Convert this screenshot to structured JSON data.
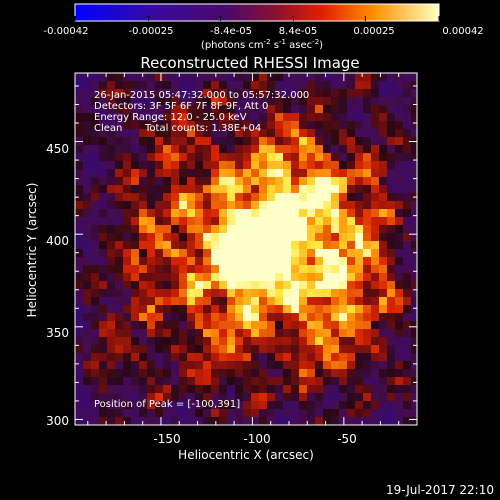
{
  "colorbar": {
    "ticks": [
      "-0.00042",
      "-0.00025",
      "-8.4e-05",
      "8.4e-05",
      "0.00025",
      "0.00042"
    ],
    "unit_label": "(photons cm",
    "unit_sup1": "-2",
    "unit_mid": " s",
    "unit_sup2": "-1",
    "unit_tail": " asec",
    "unit_sup3": "-2",
    "unit_close": ")",
    "range": [
      -0.00042,
      0.00042
    ]
  },
  "info": {
    "line1": "26-Jan-2015 05:47:32.000 to 05:57:32.000",
    "line2": "Detectors: 3F 5F 6F 7F 8F 9F, Att 0",
    "line3": "Energy Range: 12.0 - 25.0 keV",
    "line4_method": "Clean",
    "line4_counts": "Total counts: 1.38E+04",
    "peak": "Position of Peak = [-100,391]"
  },
  "footer": {
    "date": "19-Jul-2017 22:10"
  },
  "chart_data": {
    "type": "heatmap",
    "title": "Reconstructed RHESSI Image",
    "xlabel": "Heliocentric X (arcsec)",
    "ylabel": "Heliocentric Y (arcsec)",
    "xlim": [
      -197,
      -10
    ],
    "ylim": [
      297,
      487
    ],
    "x_ticks": [
      "-150",
      "-100",
      "-50"
    ],
    "y_ticks": [
      "300",
      "350",
      "400",
      "450"
    ],
    "x_tick_values": [
      -150,
      -100,
      -50
    ],
    "y_tick_values": [
      300,
      350,
      400,
      450
    ],
    "colormap": "hot",
    "peak": {
      "x": -100,
      "y": 391
    }
  }
}
